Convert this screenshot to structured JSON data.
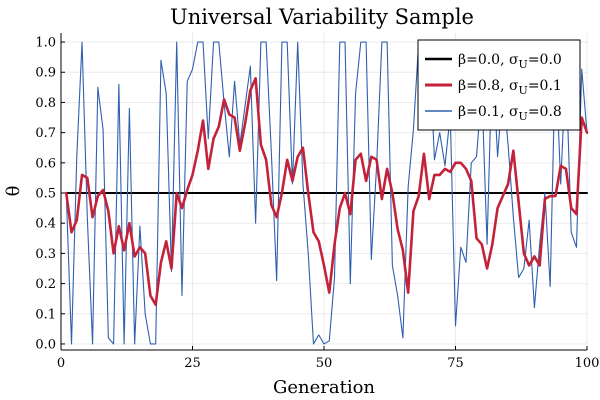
{
  "chart_data": {
    "type": "line",
    "title": "Universal Variability Sample",
    "xlabel": "Generation",
    "ylabel": "θ",
    "xlim": [
      0,
      100
    ],
    "ylim": [
      -0.02,
      1.03
    ],
    "grid": true,
    "legend_position": "top-right",
    "xticks": [
      0,
      25,
      50,
      75,
      100
    ],
    "yticks": [
      0.0,
      0.1,
      0.2,
      0.3,
      0.4,
      0.5,
      0.6,
      0.7,
      0.8,
      0.9,
      1.0
    ],
    "series": [
      {
        "name": "β=0.0, σU=0.0",
        "legend_parts": [
          [
            "β=0.0, σ",
            "n"
          ],
          [
            "U",
            "sub"
          ],
          [
            "=0.0",
            "n"
          ]
        ],
        "color": "#000000",
        "width": 2,
        "x_start": 1,
        "values": [
          0.5,
          0.5,
          0.5,
          0.5,
          0.5,
          0.5,
          0.5,
          0.5,
          0.5,
          0.5,
          0.5,
          0.5,
          0.5,
          0.5,
          0.5,
          0.5,
          0.5,
          0.5,
          0.5,
          0.5,
          0.5,
          0.5,
          0.5,
          0.5,
          0.5,
          0.5,
          0.5,
          0.5,
          0.5,
          0.5,
          0.5,
          0.5,
          0.5,
          0.5,
          0.5,
          0.5,
          0.5,
          0.5,
          0.5,
          0.5,
          0.5,
          0.5,
          0.5,
          0.5,
          0.5,
          0.5,
          0.5,
          0.5,
          0.5,
          0.5,
          0.5,
          0.5,
          0.5,
          0.5,
          0.5,
          0.5,
          0.5,
          0.5,
          0.5,
          0.5,
          0.5,
          0.5,
          0.5,
          0.5,
          0.5,
          0.5,
          0.5,
          0.5,
          0.5,
          0.5,
          0.5,
          0.5,
          0.5,
          0.5,
          0.5,
          0.5,
          0.5,
          0.5,
          0.5,
          0.5,
          0.5,
          0.5,
          0.5,
          0.5,
          0.5,
          0.5,
          0.5,
          0.5,
          0.5,
          0.5,
          0.5,
          0.5,
          0.5,
          0.5,
          0.5,
          0.5,
          0.5,
          0.5,
          0.5,
          0.5
        ]
      },
      {
        "name": "β=0.8, σU=0.1",
        "legend_parts": [
          [
            "β=0.8, σ",
            "n"
          ],
          [
            "U",
            "sub"
          ],
          [
            "=0.1",
            "n"
          ]
        ],
        "color": "#c3223b",
        "width": 2.6,
        "x_start": 1,
        "values": [
          0.5,
          0.37,
          0.41,
          0.56,
          0.55,
          0.42,
          0.49,
          0.51,
          0.44,
          0.3,
          0.39,
          0.31,
          0.4,
          0.29,
          0.32,
          0.3,
          0.16,
          0.13,
          0.27,
          0.34,
          0.25,
          0.5,
          0.45,
          0.51,
          0.56,
          0.64,
          0.74,
          0.58,
          0.68,
          0.72,
          0.81,
          0.76,
          0.75,
          0.64,
          0.73,
          0.84,
          0.88,
          0.66,
          0.61,
          0.46,
          0.42,
          0.5,
          0.61,
          0.54,
          0.62,
          0.65,
          0.5,
          0.37,
          0.34,
          0.26,
          0.17,
          0.33,
          0.45,
          0.5,
          0.43,
          0.61,
          0.63,
          0.54,
          0.62,
          0.61,
          0.48,
          0.58,
          0.5,
          0.38,
          0.31,
          0.17,
          0.44,
          0.49,
          0.63,
          0.48,
          0.56,
          0.56,
          0.58,
          0.57,
          0.6,
          0.6,
          0.58,
          0.54,
          0.35,
          0.33,
          0.25,
          0.33,
          0.45,
          0.49,
          0.53,
          0.64,
          0.47,
          0.3,
          0.26,
          0.29,
          0.26,
          0.48,
          0.49,
          0.49,
          0.59,
          0.58,
          0.45,
          0.43,
          0.75,
          0.7
        ]
      },
      {
        "name": "β=0.1, σU=0.8",
        "legend_parts": [
          [
            "β=0.1, σ",
            "n"
          ],
          [
            "U",
            "sub"
          ],
          [
            "=0.8",
            "n"
          ]
        ],
        "color": "#2f60b0",
        "width": 1.1,
        "x_start": 1,
        "values": [
          0.5,
          0.0,
          0.62,
          1.0,
          0.42,
          0.0,
          0.85,
          0.71,
          0.02,
          0.0,
          0.86,
          0.0,
          0.78,
          0.0,
          0.39,
          0.1,
          0.0,
          0.0,
          0.94,
          0.83,
          0.24,
          1.0,
          0.16,
          0.87,
          0.91,
          1.0,
          1.0,
          0.68,
          1.0,
          1.0,
          0.8,
          0.62,
          0.87,
          0.66,
          0.79,
          0.92,
          0.4,
          1.0,
          1.0,
          0.63,
          0.21,
          1.0,
          1.0,
          0.53,
          1.0,
          0.53,
          0.3,
          0.0,
          0.03,
          0.0,
          0.01,
          0.22,
          1.0,
          1.0,
          0.2,
          0.83,
          1.0,
          1.0,
          0.28,
          0.59,
          1.0,
          1.0,
          0.26,
          0.16,
          0.02,
          0.52,
          0.71,
          1.0,
          0.72,
          1.0,
          0.61,
          0.7,
          0.59,
          0.76,
          0.06,
          0.32,
          0.27,
          0.6,
          0.62,
          0.85,
          0.33,
          0.96,
          0.62,
          0.85,
          0.66,
          0.42,
          0.22,
          0.25,
          0.41,
          0.12,
          0.33,
          0.5,
          0.19,
          0.96,
          0.53,
          0.92,
          0.37,
          0.32,
          0.91,
          0.7
        ]
      }
    ]
  }
}
